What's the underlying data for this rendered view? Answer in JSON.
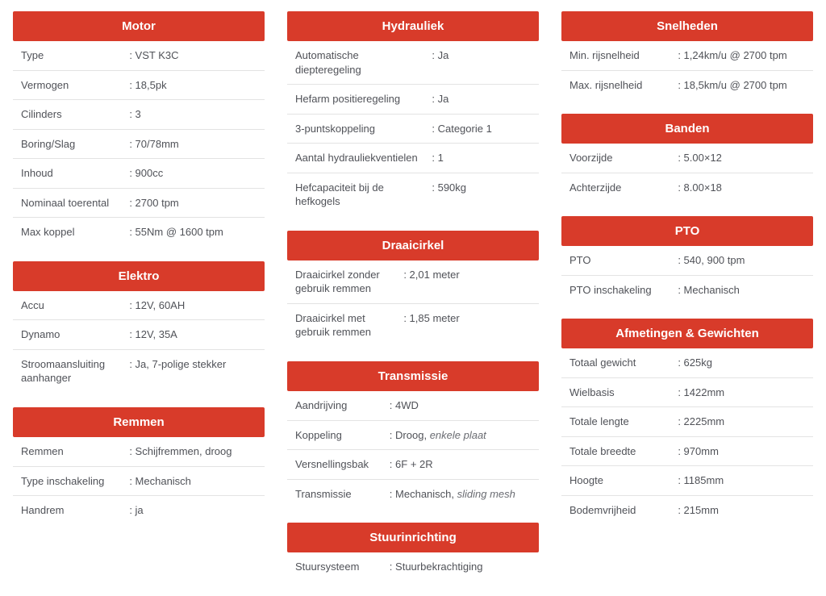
{
  "columns": [
    [
      {
        "title": "Motor",
        "rows": [
          {
            "label": "Type",
            "value": "VST K3C"
          },
          {
            "label": "Vermogen",
            "value": "18,5pk"
          },
          {
            "label": "Cilinders",
            "value": "3"
          },
          {
            "label": "Boring/Slag",
            "value": "70/78mm"
          },
          {
            "label": "Inhoud",
            "value": "900cc"
          },
          {
            "label": "Nominaal toerental",
            "value": "2700 tpm"
          },
          {
            "label": "Max koppel",
            "value": "55Nm @ 1600 tpm"
          }
        ]
      },
      {
        "title": "Elektro",
        "rows": [
          {
            "label": "Accu",
            "value": "12V, 60AH"
          },
          {
            "label": "Dynamo",
            "value": "12V, 35A"
          },
          {
            "label": "Stroomaansluiting aanhanger",
            "value": "Ja, 7-polige stekker"
          }
        ]
      },
      {
        "title": "Remmen",
        "rows": [
          {
            "label": "Remmen",
            "value": "Schijfremmen, droog"
          },
          {
            "label": "Type inschakeling",
            "value": "Mechanisch"
          },
          {
            "label": "Handrem",
            "value": "ja"
          }
        ]
      }
    ],
    [
      {
        "title": "Hydrauliek",
        "rows": [
          {
            "label": "Automatische diepteregeling",
            "value": "Ja"
          },
          {
            "label": "Hefarm positieregeling",
            "value": "Ja"
          },
          {
            "label": "3-puntskoppeling",
            "value": "Categorie 1"
          },
          {
            "label": "Aantal hydrauliekventielen",
            "value": "1"
          },
          {
            "label": "Hefcapaciteit bij de hefkogels",
            "value": "590kg"
          }
        ]
      },
      {
        "title": "Draaicirkel",
        "rows": [
          {
            "label": "Draaicirkel zonder gebruik remmen",
            "value": "2,01 meter"
          },
          {
            "label": "Draaicirkel met gebruik remmen",
            "value": "1,85 meter"
          }
        ]
      },
      {
        "title": "Transmissie",
        "rows": [
          {
            "label": "Aandrijving",
            "value": "4WD"
          },
          {
            "label": "Koppeling",
            "value": "Droog,",
            "em": "enkele plaat"
          },
          {
            "label": "Versnellingsbak",
            "value": "6F + 2R"
          },
          {
            "label": "Transmissie",
            "value": "Mechanisch,",
            "em": "sliding mesh"
          }
        ]
      },
      {
        "title": "Stuurinrichting",
        "rows": [
          {
            "label": "Stuursysteem",
            "value": "Stuurbekrachtiging"
          }
        ]
      }
    ],
    [
      {
        "title": "Snelheden",
        "rows": [
          {
            "label": "Min. rijsnelheid",
            "value": "1,24km/u @ 2700 tpm"
          },
          {
            "label": "Max. rijsnelheid",
            "value": "18,5km/u @ 2700 tpm"
          }
        ]
      },
      {
        "title": "Banden",
        "rows": [
          {
            "label": "Voorzijde",
            "value": "5.00×12"
          },
          {
            "label": "Achterzijde",
            "value": "8.00×18"
          }
        ]
      },
      {
        "title": "PTO",
        "rows": [
          {
            "label": "PTO",
            "value": "540, 900 tpm"
          },
          {
            "label": "PTO inschakeling",
            "value": "Mechanisch"
          }
        ]
      },
      {
        "title": "Afmetingen & Gewichten",
        "rows": [
          {
            "label": "Totaal gewicht",
            "value": "625kg"
          },
          {
            "label": "Wielbasis",
            "value": "1422mm"
          },
          {
            "label": "Totale lengte",
            "value": "2225mm"
          },
          {
            "label": "Totale breedte",
            "value": "970mm"
          },
          {
            "label": "Hoogte",
            "value": "1185mm"
          },
          {
            "label": "Bodemvrijheid",
            "value": "215mm"
          }
        ]
      }
    ]
  ],
  "colors": {
    "header_bg": "#d83b2a",
    "header_text": "#ffffff",
    "text": "#505258",
    "border": "#e3e3e3",
    "background": "#ffffff"
  },
  "label_width_pct": {
    "col1": 46,
    "col2_hydrauliek": 58,
    "col2_draaicirkel": 46,
    "col2_transmissie": 40,
    "col2_stuur": 40,
    "col3": 46
  }
}
